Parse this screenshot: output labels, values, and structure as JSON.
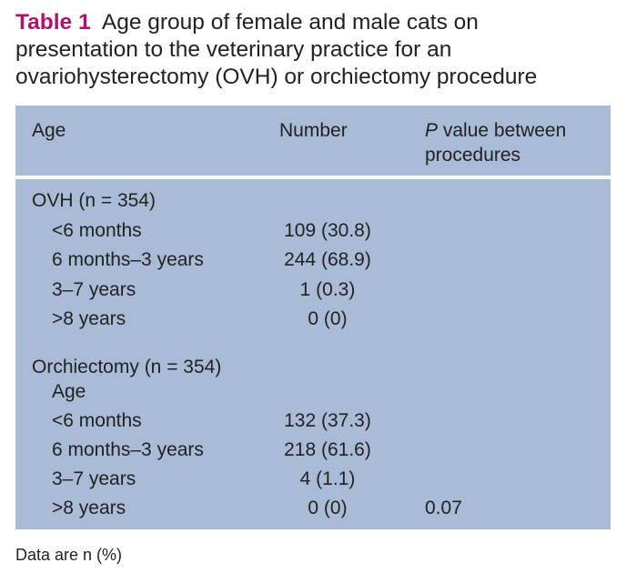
{
  "title": {
    "label": "Table 1",
    "text": "Age group of female and male cats on presentation to the veterinary practice for an ovariohysterectomy (OVH) or orchiectomy procedure"
  },
  "table": {
    "header": [
      "Age",
      "Number",
      {
        "italic": "P",
        "text": "value between procedures"
      }
    ],
    "rows": [
      [
        "OVH (n = 354)"
      ],
      [
        "<6 months",
        "109 (30.8)"
      ],
      [
        "6 months–3 years",
        "244 (68.9)"
      ],
      [
        "3–7 years",
        "1 (0.3)"
      ],
      [
        ">8 years",
        "0 (0)"
      ],
      [
        "Orchiectomy (n = 354)"
      ],
      [
        "Age"
      ],
      [
        "<6 months",
        "132 (37.3)"
      ],
      [
        "6 months–3 years",
        "218 (61.6)"
      ],
      [
        "3–7 years",
        "4 (1.1)"
      ],
      [
        ">8 years",
        "0 (0)",
        "0.07"
      ]
    ]
  },
  "footnote": "Data are n (%)"
}
